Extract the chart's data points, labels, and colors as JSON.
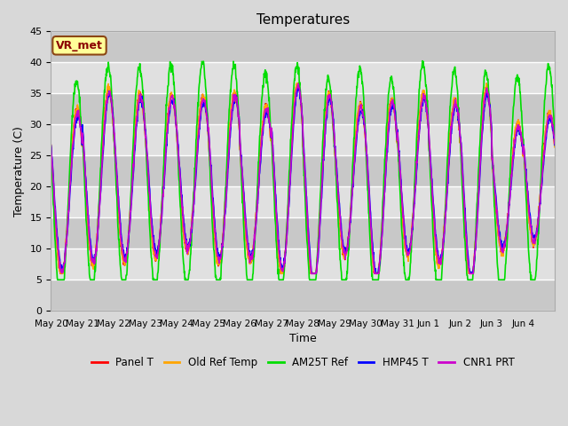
{
  "title": "Temperatures",
  "xlabel": "Time",
  "ylabel": "Temperature (C)",
  "ylim": [
    0,
    45
  ],
  "yticks": [
    0,
    5,
    10,
    15,
    20,
    25,
    30,
    35,
    40,
    45
  ],
  "annotation_text": "VR_met",
  "series": [
    {
      "label": "Panel T",
      "color": "#ff0000",
      "lw": 1.2
    },
    {
      "label": "Old Ref Temp",
      "color": "#ffa500",
      "lw": 1.2
    },
    {
      "label": "AM25T Ref",
      "color": "#00dd00",
      "lw": 1.2
    },
    {
      "label": "HMP45 T",
      "color": "#0000ff",
      "lw": 1.2
    },
    {
      "label": "CNR1 PRT",
      "color": "#cc00cc",
      "lw": 1.2
    }
  ],
  "xtick_labels": [
    "May 20",
    "May 21",
    "May 22",
    "May 23",
    "May 24",
    "May 25",
    "May 26",
    "May 27",
    "May 28",
    "May 29",
    "May 30",
    "May 31",
    "Jun 1",
    "Jun 2",
    "Jun 3",
    "Jun 4"
  ],
  "n_days": 16,
  "points_per_day": 96
}
